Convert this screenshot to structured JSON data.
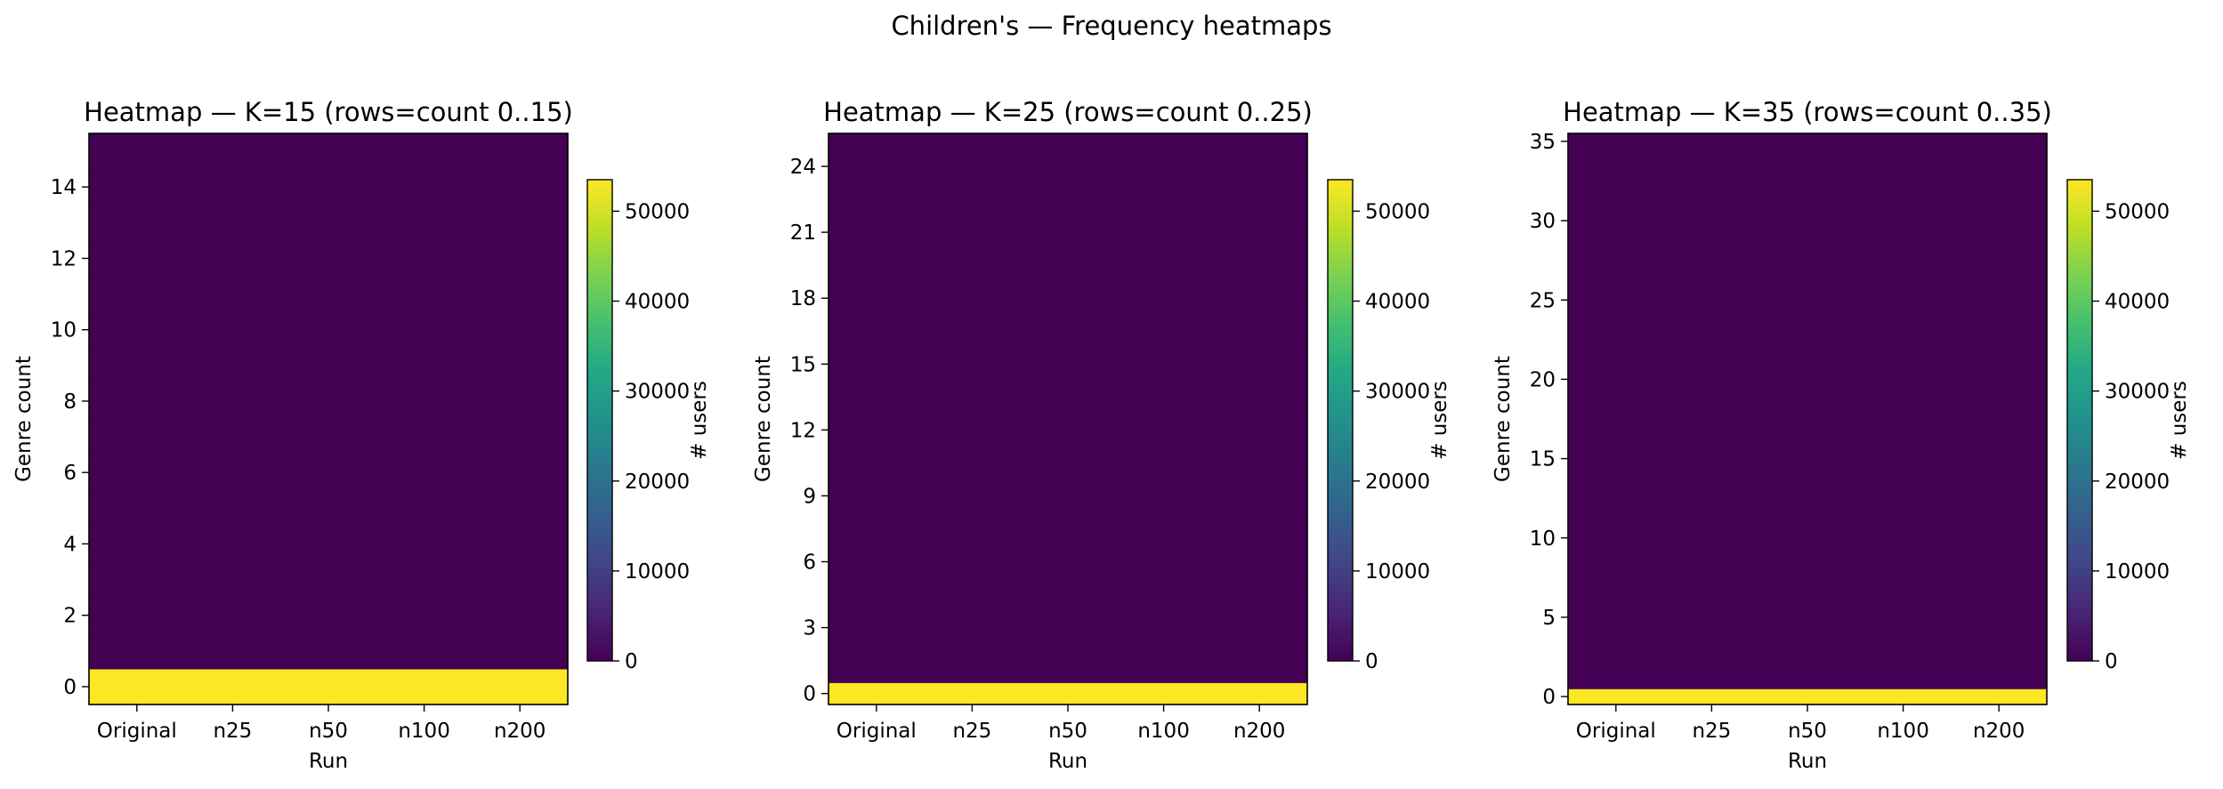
{
  "figure": {
    "suptitle": "Children's — Frequency heatmaps"
  },
  "colormap": {
    "name": "viridis",
    "low_color": "#440154",
    "high_color": "#fde725"
  },
  "chart_data": [
    {
      "type": "heatmap",
      "title": "Heatmap — K=15 (rows=count 0..15)",
      "xlabel": "Run",
      "ylabel": "Genre count",
      "x_categories": [
        "Original",
        "n25",
        "n50",
        "n100",
        "n200"
      ],
      "y_rows": [
        0,
        15
      ],
      "ylim": [
        -0.5,
        15.5
      ],
      "y_ticks": [
        0,
        2,
        4,
        6,
        8,
        10,
        12,
        14
      ],
      "cell_values_by_row": {
        "0": [
          53500,
          53500,
          53500,
          53500,
          53500
        ],
        "1-15": [
          0,
          0,
          0,
          0,
          0
        ]
      },
      "colorbar": {
        "label": "# users",
        "range": [
          0,
          53500
        ],
        "ticks": [
          0,
          10000,
          20000,
          30000,
          40000,
          50000
        ]
      }
    },
    {
      "type": "heatmap",
      "title": "Heatmap — K=25 (rows=count 0..25)",
      "xlabel": "Run",
      "ylabel": "Genre count",
      "x_categories": [
        "Original",
        "n25",
        "n50",
        "n100",
        "n200"
      ],
      "y_rows": [
        0,
        25
      ],
      "ylim": [
        -0.5,
        25.5
      ],
      "y_ticks": [
        0,
        3,
        6,
        9,
        12,
        15,
        18,
        21,
        24
      ],
      "cell_values_by_row": {
        "0": [
          53500,
          53500,
          53500,
          53500,
          53500
        ],
        "1-25": [
          0,
          0,
          0,
          0,
          0
        ]
      },
      "colorbar": {
        "label": "# users",
        "range": [
          0,
          53500
        ],
        "ticks": [
          0,
          10000,
          20000,
          30000,
          40000,
          50000
        ]
      }
    },
    {
      "type": "heatmap",
      "title": "Heatmap — K=35 (rows=count 0..35)",
      "xlabel": "Run",
      "ylabel": "Genre count",
      "x_categories": [
        "Original",
        "n25",
        "n50",
        "n100",
        "n200"
      ],
      "y_rows": [
        0,
        35
      ],
      "ylim": [
        -0.5,
        35.5
      ],
      "y_ticks": [
        0,
        5,
        10,
        15,
        20,
        25,
        30,
        35
      ],
      "cell_values_by_row": {
        "0": [
          53500,
          53500,
          53500,
          53500,
          53500
        ],
        "1-35": [
          0,
          0,
          0,
          0,
          0
        ]
      },
      "colorbar": {
        "label": "# users",
        "range": [
          0,
          53500
        ],
        "ticks": [
          0,
          10000,
          20000,
          30000,
          40000,
          50000
        ]
      }
    }
  ]
}
